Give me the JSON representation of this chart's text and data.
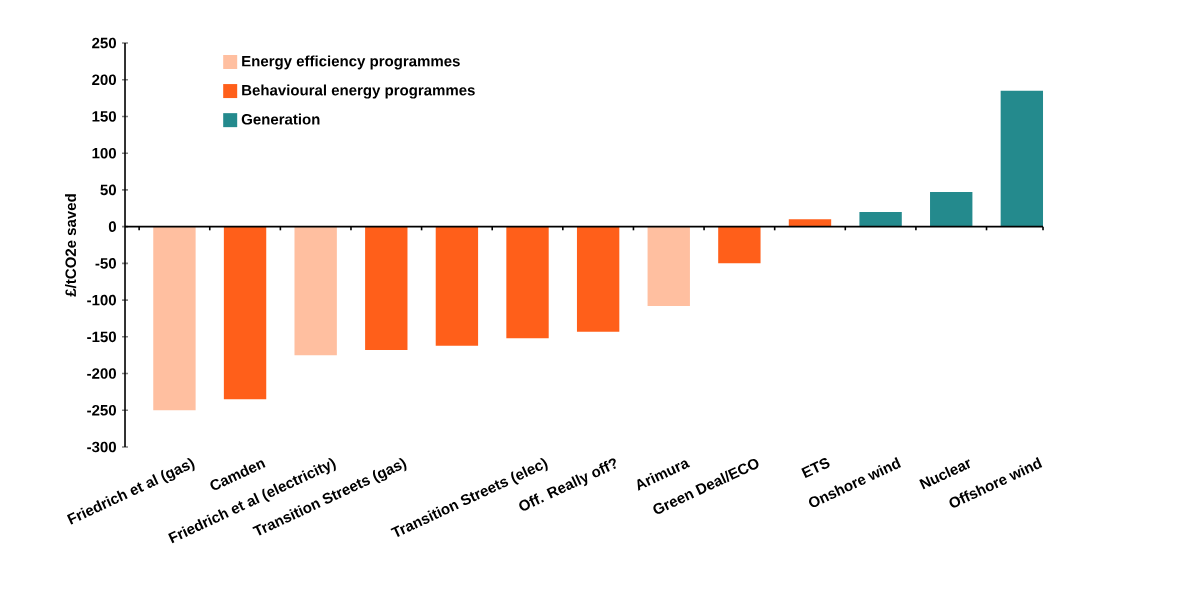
{
  "chart_data": {
    "type": "bar",
    "ylabel": "£/tCO2e saved",
    "categories": [
      "Friedrich et al (gas)",
      "Camden",
      "Friedrich et al (electricity)",
      "Transition Streets (gas)",
      null,
      "Transition Streets (elec)",
      "Off. Really off?",
      "Arimura",
      "Green Deal/ECO",
      "ETS",
      "Onshore wind",
      "Nuclear",
      "Offshore wind"
    ],
    "series": [
      {
        "name": "Energy efficiency programmes",
        "color": "#ffbfa0",
        "values": [
          -250,
          null,
          -175,
          null,
          null,
          null,
          null,
          -108,
          null,
          null,
          null,
          null,
          null
        ]
      },
      {
        "name": "Behavioural energy programmes",
        "color": "#ff5f1a",
        "values": [
          null,
          -235,
          null,
          -168,
          -162,
          -152,
          -143,
          null,
          -50,
          10,
          null,
          null,
          null
        ]
      },
      {
        "name": "Generation",
        "color": "#248a8d",
        "values": [
          null,
          null,
          null,
          null,
          null,
          null,
          null,
          null,
          null,
          null,
          20,
          47,
          185
        ]
      }
    ],
    "ylim": [
      -300,
      250
    ],
    "yticks": [
      -300,
      -250,
      -200,
      -150,
      -100,
      -50,
      0,
      50,
      100,
      150,
      200,
      250
    ],
    "legend": "top left"
  }
}
